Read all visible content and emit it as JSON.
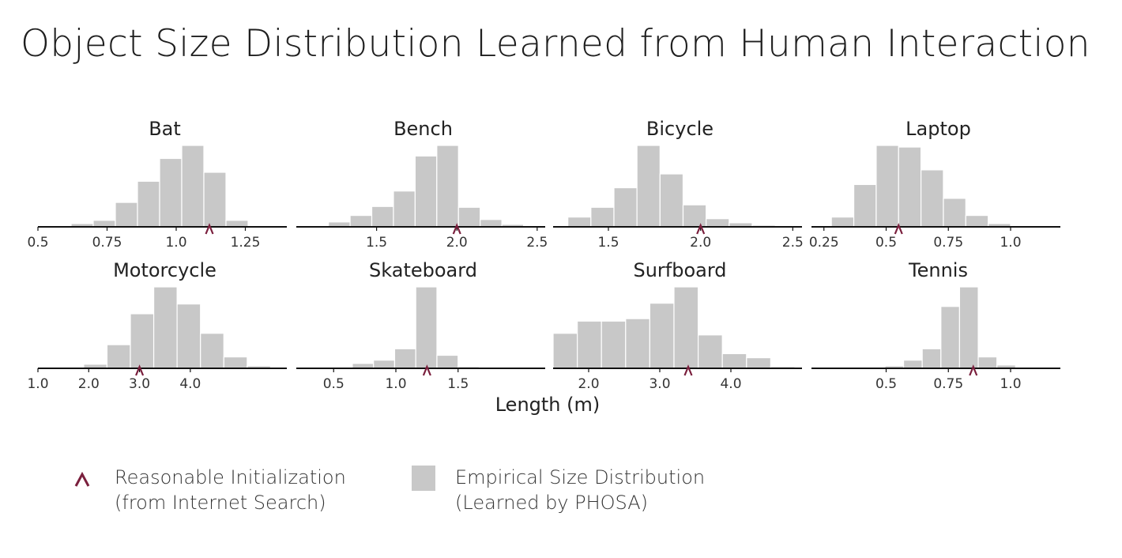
{
  "title": "Object Size Distribution Learned from Human Interaction",
  "colors": {
    "bar": "#c8c8c8",
    "marker": "#7a1f3d",
    "axis": "#111111"
  },
  "legend": {
    "marker_line1": "Reasonable Initialization",
    "marker_line2": "(from Internet Search)",
    "bar_line1": "Empirical Size Distribution",
    "bar_line2": "(Learned by PHOSA)"
  },
  "chart_data": [
    {
      "type": "bar",
      "title": "Bat",
      "xlabel": "",
      "xlim": [
        0.5,
        1.4
      ],
      "ticks": [
        0.5,
        0.75,
        1.0,
        1.25
      ],
      "tick_labels": [
        "0.5",
        "0.75",
        "1.0",
        "1.25"
      ],
      "bin_edges": [
        0.62,
        0.7,
        0.78,
        0.86,
        0.94,
        1.02,
        1.1,
        1.18,
        1.26
      ],
      "counts": [
        4,
        8,
        30,
        56,
        84,
        100,
        67,
        8
      ],
      "initialization": 1.12
    },
    {
      "type": "bar",
      "title": "Bench",
      "xlabel": "",
      "xlim": [
        1.0,
        2.55
      ],
      "ticks": [
        1.5,
        2.0,
        2.5
      ],
      "tick_labels": [
        "1.5",
        "2.0",
        "2.5"
      ],
      "bin_edges": [
        1.2,
        1.335,
        1.47,
        1.605,
        1.74,
        1.875,
        2.01,
        2.145,
        2.28,
        2.415
      ],
      "counts": [
        6,
        14,
        25,
        44,
        87,
        100,
        24,
        9,
        3
      ],
      "initialization": 2.0
    },
    {
      "type": "bar",
      "title": "Bicycle",
      "xlabel": "",
      "xlim": [
        1.2,
        2.55
      ],
      "ticks": [
        1.5,
        2.0,
        2.5
      ],
      "tick_labels": [
        "1.5",
        "2.0",
        "2.5"
      ],
      "bin_edges": [
        1.28,
        1.405,
        1.53,
        1.655,
        1.78,
        1.905,
        2.03,
        2.155,
        2.28,
        2.405
      ],
      "counts": [
        12,
        24,
        48,
        100,
        65,
        27,
        10,
        5,
        2
      ],
      "initialization": 2.0
    },
    {
      "type": "bar",
      "title": "Laptop",
      "xlabel": "",
      "xlim": [
        0.2,
        1.2
      ],
      "ticks": [
        0.25,
        0.5,
        0.75,
        1.0
      ],
      "tick_labels": [
        "0.25",
        "0.5",
        "0.75",
        "1.0"
      ],
      "bin_edges": [
        0.28,
        0.37,
        0.46,
        0.55,
        0.64,
        0.73,
        0.82,
        0.91,
        1.0
      ],
      "counts": [
        12,
        52,
        100,
        98,
        70,
        35,
        14,
        4
      ],
      "initialization": 0.55
    },
    {
      "type": "bar",
      "title": "Motorcycle",
      "xlabel": "",
      "xlim": [
        1.0,
        5.9
      ],
      "ticks": [
        1.0,
        2.0,
        3.0,
        4.0
      ],
      "tick_labels": [
        "1.0",
        "2.0",
        "3.0",
        "4.0"
      ],
      "bin_edges": [
        1.9,
        2.36,
        2.82,
        3.28,
        3.74,
        4.2,
        4.66,
        5.12,
        5.58
      ],
      "counts": [
        5,
        29,
        67,
        100,
        79,
        43,
        14,
        3
      ],
      "initialization": 3.0
    },
    {
      "type": "bar",
      "title": "Skateboard",
      "xlabel": "",
      "xlim": [
        0.2,
        2.2
      ],
      "ticks": [
        0.5,
        1.0,
        1.5
      ],
      "tick_labels": [
        "0.5",
        "1.0",
        "1.5"
      ],
      "bin_edges": [
        0.65,
        0.82,
        0.99,
        1.16,
        1.33,
        1.5,
        1.67,
        1.84,
        2.01
      ],
      "counts": [
        6,
        10,
        24,
        100,
        16,
        2,
        1,
        1
      ],
      "initialization": 1.25
    },
    {
      "type": "bar",
      "title": "Surfboard",
      "xlabel": "Length (m)",
      "xlim": [
        1.5,
        5.0
      ],
      "ticks": [
        2.0,
        3.0,
        4.0
      ],
      "tick_labels": [
        "2.0",
        "3.0",
        "4.0"
      ],
      "bin_edges": [
        1.5,
        1.84,
        2.18,
        2.52,
        2.86,
        3.2,
        3.54,
        3.88,
        4.22,
        4.56,
        4.9
      ],
      "counts": [
        43,
        58,
        58,
        61,
        80,
        100,
        41,
        18,
        13,
        2
      ],
      "initialization": 3.4
    },
    {
      "type": "bar",
      "title": "Tennis",
      "xlabel": "",
      "xlim": [
        0.2,
        1.2
      ],
      "ticks": [
        0.5,
        0.75,
        1.0
      ],
      "tick_labels": [
        "0.5",
        "0.75",
        "1.0"
      ],
      "bin_edges": [
        0.42,
        0.495,
        0.57,
        0.645,
        0.72,
        0.795,
        0.87,
        0.945,
        1.02
      ],
      "counts": [
        1,
        3,
        10,
        24,
        76,
        100,
        14,
        4
      ],
      "initialization": 0.85
    }
  ]
}
